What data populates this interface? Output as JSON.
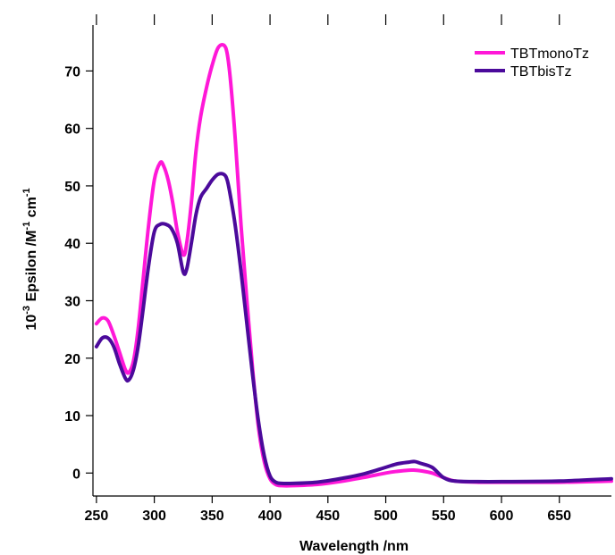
{
  "chart_data": {
    "type": "line",
    "title": "",
    "xlabel": "Wavelength /nm",
    "ylabel": {
      "base": "10",
      "base_sup": "-3",
      "text": "Epsilon /M",
      "unit1_sup": "-1",
      "unit2": "cm",
      "unit2_sup": "-1"
    },
    "xlim": [
      247,
      695
    ],
    "ylim": [
      -4,
      78
    ],
    "xticks": [
      250,
      300,
      350,
      400,
      450,
      500,
      550,
      600,
      650
    ],
    "yticks": [
      0,
      10,
      20,
      30,
      40,
      50,
      60,
      70
    ],
    "legend_position": "top-right",
    "series": [
      {
        "name": "TBTmonoTz",
        "color": "#ff18d8",
        "x": [
          250,
          255,
          260,
          265,
          270,
          275,
          278,
          282,
          286,
          290,
          295,
          300,
          305,
          308,
          312,
          316,
          320,
          325,
          328,
          332,
          336,
          340,
          345,
          350,
          355,
          360,
          363,
          366,
          370,
          375,
          380,
          385,
          390,
          395,
          400,
          405,
          410,
          420,
          440,
          460,
          480,
          500,
          510,
          520,
          525,
          530,
          540,
          550,
          560,
          580,
          600,
          650,
          695
        ],
        "y": [
          26,
          27,
          26.5,
          24,
          21,
          18,
          17.5,
          19.5,
          25,
          33,
          43,
          51,
          54,
          53.5,
          51,
          47,
          42,
          38,
          40,
          47,
          56,
          62,
          67,
          71,
          74,
          74.5,
          73,
          68,
          58,
          43,
          30,
          18,
          8,
          2,
          -1,
          -2,
          -2.2,
          -2.2,
          -2,
          -1.5,
          -0.8,
          0,
          0.3,
          0.5,
          0.5,
          0.4,
          0,
          -0.8,
          -1.4,
          -1.6,
          -1.6,
          -1.6,
          -1.4
        ]
      },
      {
        "name": "TBTbisTz",
        "color": "#4b0a9b",
        "x": [
          250,
          255,
          260,
          265,
          270,
          275,
          278,
          282,
          286,
          290,
          295,
          300,
          305,
          310,
          315,
          320,
          325,
          328,
          332,
          336,
          340,
          345,
          350,
          355,
          360,
          363,
          366,
          370,
          375,
          380,
          385,
          390,
          395,
          400,
          405,
          410,
          420,
          440,
          460,
          480,
          500,
          510,
          520,
          525,
          530,
          540,
          550,
          560,
          580,
          600,
          650,
          695
        ],
        "y": [
          22,
          23.5,
          23.5,
          22,
          19,
          16.5,
          16.2,
          18,
          22,
          28,
          36,
          42,
          43.3,
          43.3,
          42.5,
          40,
          35,
          35.5,
          40,
          45,
          48,
          49.5,
          51,
          52,
          52,
          51,
          48,
          43,
          35,
          26,
          17,
          9,
          3,
          -0.5,
          -1.6,
          -1.8,
          -1.8,
          -1.6,
          -1,
          -0.2,
          1,
          1.6,
          1.9,
          2,
          1.7,
          1,
          -0.8,
          -1.4,
          -1.5,
          -1.5,
          -1.4,
          -1
        ]
      }
    ]
  }
}
